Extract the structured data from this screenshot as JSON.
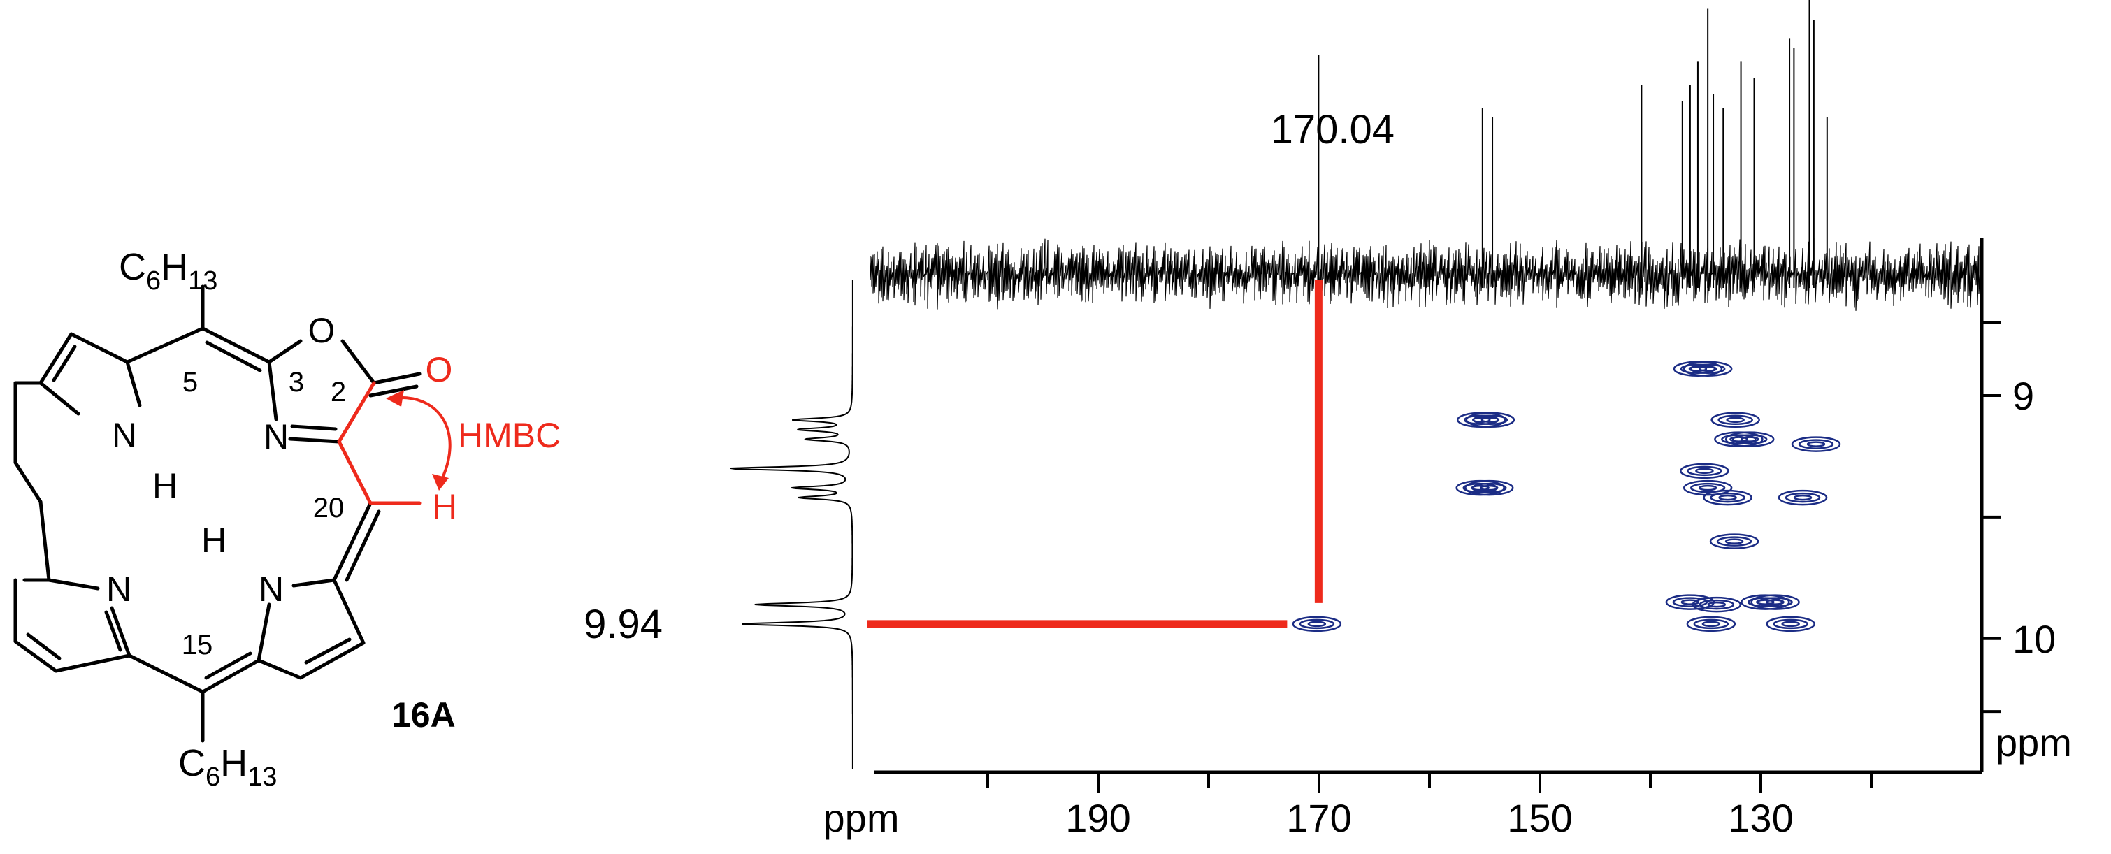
{
  "molecule": {
    "compound_label": "16A",
    "substituent_top": {
      "base": "C",
      "sub1": "6",
      "mid": "H",
      "sub2": "13"
    },
    "substituent_bottom": {
      "base": "C",
      "sub1": "6",
      "mid": "H",
      "sub2": "13"
    },
    "atoms": {
      "oxygen_ring": "O",
      "oxygen_carbonyl": "O",
      "nitrogen_oxazole": "N",
      "nitrogen_bottom_left": "N",
      "nitrogen_bottom_right": "N",
      "nitrogen_top_left": "N",
      "hydrogen_nh_top": "H",
      "hydrogen_nh_bottom": "H",
      "hydrogen_highlighted": "H"
    },
    "positions": {
      "p2": "2",
      "p3": "3",
      "p5": "5",
      "p15": "15",
      "p20": "20"
    },
    "annotation": "HMBC",
    "highlight_color": "#ee2a1c"
  },
  "chart_data": {
    "type": "heatmap",
    "title": "",
    "xlabel": "ppm",
    "ylabel": "ppm",
    "x_axis": {
      "ticks": [
        190,
        170,
        150,
        130
      ],
      "range": [
        210,
        110
      ],
      "reversed": true
    },
    "y_axis": {
      "ticks": [
        9,
        10
      ],
      "range": [
        8.35,
        10.55
      ],
      "reversed": true
    },
    "correlation_highlight": {
      "x": 170.04,
      "y": 9.94,
      "x_label": "170.04",
      "y_label": "9.94",
      "color": "#ee2a1c"
    },
    "contour_color": "#1b2c85",
    "cross_peaks": [
      {
        "x": 170.2,
        "y": 9.94
      },
      {
        "x": 155.3,
        "y": 9.1
      },
      {
        "x": 155.4,
        "y": 9.38
      },
      {
        "x": 154.5,
        "y": 9.1
      },
      {
        "x": 154.6,
        "y": 9.38
      },
      {
        "x": 135.7,
        "y": 8.89
      },
      {
        "x": 134.8,
        "y": 8.89
      },
      {
        "x": 132.3,
        "y": 9.1
      },
      {
        "x": 132.0,
        "y": 9.18
      },
      {
        "x": 131.0,
        "y": 9.18
      },
      {
        "x": 135.1,
        "y": 9.31
      },
      {
        "x": 134.8,
        "y": 9.38
      },
      {
        "x": 133.0,
        "y": 9.42
      },
      {
        "x": 126.2,
        "y": 9.42
      },
      {
        "x": 125.0,
        "y": 9.2
      },
      {
        "x": 132.4,
        "y": 9.6
      },
      {
        "x": 136.4,
        "y": 9.85
      },
      {
        "x": 134.0,
        "y": 9.86
      },
      {
        "x": 129.6,
        "y": 9.85
      },
      {
        "x": 128.7,
        "y": 9.85
      },
      {
        "x": 134.5,
        "y": 9.94
      },
      {
        "x": 127.3,
        "y": 9.94
      }
    ],
    "carbon_1d_peaks": [
      {
        "x": 170.04,
        "h": 0.95
      },
      {
        "x": 155.2,
        "h": 0.72
      },
      {
        "x": 154.3,
        "h": 0.68
      },
      {
        "x": 140.8,
        "h": 0.82
      },
      {
        "x": 137.1,
        "h": 0.75
      },
      {
        "x": 136.4,
        "h": 0.82
      },
      {
        "x": 135.7,
        "h": 0.92
      },
      {
        "x": 134.8,
        "h": 1.15
      },
      {
        "x": 134.3,
        "h": 0.78
      },
      {
        "x": 133.4,
        "h": 0.72
      },
      {
        "x": 131.8,
        "h": 0.92
      },
      {
        "x": 130.6,
        "h": 0.85
      },
      {
        "x": 127.4,
        "h": 1.02
      },
      {
        "x": 127.0,
        "h": 0.98
      },
      {
        "x": 125.6,
        "h": 1.2
      },
      {
        "x": 125.2,
        "h": 1.1
      },
      {
        "x": 124.0,
        "h": 0.68
      }
    ],
    "proton_1d_peaks": [
      {
        "y": 9.1,
        "h": 0.45
      },
      {
        "y": 9.14,
        "h": 0.4
      },
      {
        "y": 9.18,
        "h": 0.35
      },
      {
        "y": 9.3,
        "h": 0.95
      },
      {
        "y": 9.38,
        "h": 0.45
      },
      {
        "y": 9.42,
        "h": 0.4
      },
      {
        "y": 9.86,
        "h": 0.75
      },
      {
        "y": 9.94,
        "h": 0.85
      }
    ]
  }
}
